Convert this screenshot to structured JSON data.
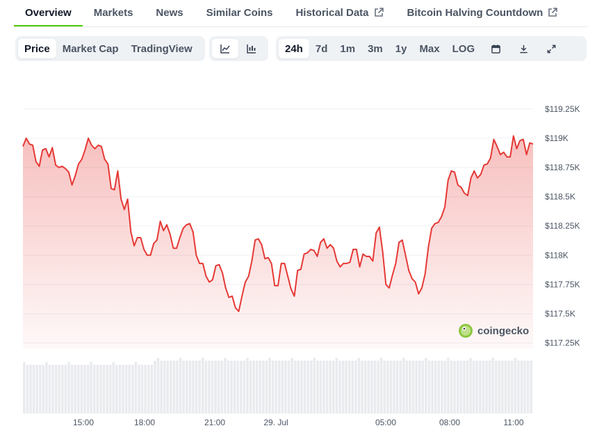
{
  "tabs": [
    {
      "label": "Overview",
      "active": true
    },
    {
      "label": "Markets"
    },
    {
      "label": "News"
    },
    {
      "label": "Similar Coins"
    },
    {
      "label": "Historical Data",
      "external": true
    },
    {
      "label": "Bitcoin Halving Countdown",
      "external": true
    }
  ],
  "controls": {
    "metric": [
      "Price",
      "Market Cap",
      "TradingView"
    ],
    "metric_selected": "Price",
    "chart_style_icons": [
      "line-chart-icon",
      "candlestick-chart-icon"
    ],
    "range": [
      "24h",
      "7d",
      "1m",
      "3m",
      "1y",
      "Max",
      "LOG"
    ],
    "range_selected": "24h",
    "tool_icons": [
      "calendar-icon",
      "download-icon",
      "expand-icon"
    ]
  },
  "watermark": "coingecko",
  "colors": {
    "line": "#e53935",
    "accent": "#4bcc00",
    "volume": "#e9ebee"
  },
  "chart_data": {
    "type": "area",
    "ylabel": "",
    "ylim": [
      117.2,
      119.32
    ],
    "yticks": [
      117.25,
      117.5,
      117.75,
      118,
      118.25,
      118.5,
      118.75,
      119,
      119.25
    ],
    "ytick_labels": [
      "$117.25K",
      "$117.5K",
      "$117.75K",
      "$118K",
      "$118.25K",
      "$118.5K",
      "$118.75K",
      "$119K",
      "$119.25K"
    ],
    "xlim": [
      13.2,
      11.4
    ],
    "xticks": [
      "15:00",
      "18:00",
      "21:00",
      "29. Jul",
      "05:00",
      "08:00",
      "11:00"
    ],
    "series": [
      {
        "values": [
          118.93,
          119.0,
          118.95,
          118.94,
          118.8,
          118.76,
          118.9,
          118.91,
          118.84,
          118.92,
          118.77,
          118.75,
          118.76,
          118.74,
          118.71,
          118.6,
          118.68,
          118.78,
          118.82,
          118.9,
          119.0,
          118.94,
          118.91,
          118.94,
          118.93,
          118.82,
          118.78,
          118.57,
          118.56,
          118.72,
          118.48,
          118.39,
          118.48,
          118.2,
          118.08,
          118.15,
          118.15,
          118.05,
          118.0,
          118.0,
          118.1,
          118.13,
          118.29,
          118.21,
          118.26,
          118.18,
          118.06,
          118.06,
          118.15,
          118.23,
          118.26,
          118.27,
          118.2,
          118.0,
          117.93,
          117.93,
          117.82,
          117.77,
          117.79,
          117.91,
          117.92,
          117.85,
          117.72,
          117.64,
          117.65,
          117.55,
          117.52,
          117.65,
          117.77,
          117.82,
          117.95,
          118.13,
          118.14,
          118.09,
          117.97,
          117.98,
          117.93,
          117.74,
          117.74,
          117.93,
          117.93,
          117.82,
          117.71,
          117.65,
          117.87,
          117.88,
          118.01,
          118.02,
          118.05,
          118.04,
          117.99,
          118.11,
          118.14,
          118.06,
          118.09,
          118.06,
          117.95,
          117.9,
          117.93,
          117.93,
          117.94,
          118.05,
          118.05,
          117.9,
          118.01,
          117.99,
          117.99,
          117.95,
          118.19,
          118.24,
          118.03,
          117.75,
          117.72,
          117.83,
          117.93,
          118.11,
          118.13,
          118.0,
          117.87,
          117.8,
          117.77,
          117.67,
          117.72,
          117.84,
          118.07,
          118.23,
          118.27,
          118.28,
          118.33,
          118.41,
          118.64,
          118.72,
          118.71,
          118.6,
          118.58,
          118.53,
          118.51,
          118.66,
          118.72,
          118.66,
          118.69,
          118.77,
          118.78,
          118.83,
          118.99,
          118.93,
          118.86,
          118.88,
          118.84,
          118.84,
          119.02,
          118.91,
          118.98,
          118.99,
          118.86,
          118.96,
          118.95
        ]
      }
    ],
    "volume": "flat, near-uniform bars across full range"
  }
}
